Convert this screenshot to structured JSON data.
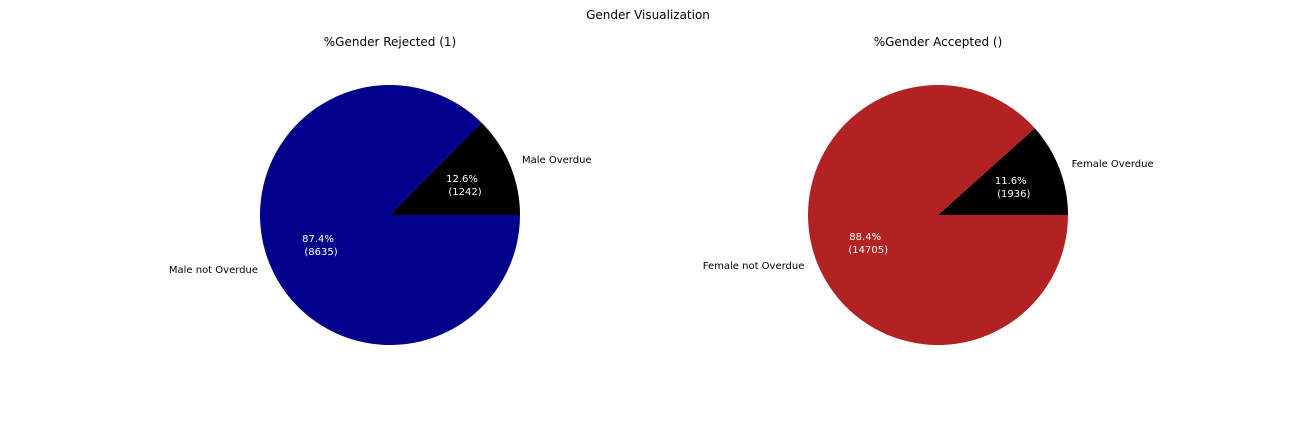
{
  "figure": {
    "suptitle": "Gender Visualization"
  },
  "chart_data": [
    {
      "type": "pie",
      "title": "%Gender Rejected (1)",
      "labels": [
        "Male Overdue",
        "Male not Overdue"
      ],
      "values": [
        1242,
        8635
      ],
      "percent_labels": [
        "12.6%",
        "87.4%"
      ],
      "count_labels": [
        "(1242)",
        "(8635)"
      ],
      "colors": [
        "#000000",
        "#00008b"
      ],
      "autopct_text_color": "#ffffff",
      "start_angle_deg": 0,
      "direction": "counterclockwise"
    },
    {
      "type": "pie",
      "title": "%Gender Accepted ()",
      "labels": [
        "Female Overdue",
        "Female not Overdue"
      ],
      "values": [
        1936,
        14705
      ],
      "percent_labels": [
        "11.6%",
        "88.4%"
      ],
      "count_labels": [
        "(1936)",
        "(14705)"
      ],
      "colors": [
        "#000000",
        "#b22222"
      ],
      "autopct_text_color": "#ffffff",
      "start_angle_deg": 0,
      "direction": "counterclockwise"
    }
  ]
}
